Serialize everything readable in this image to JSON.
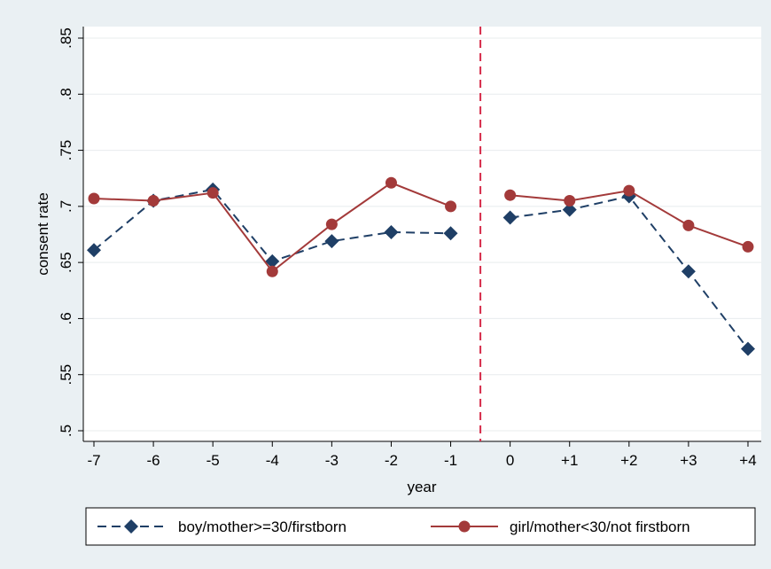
{
  "chart_data": {
    "type": "line",
    "xlabel": "year",
    "ylabel": "consent rate",
    "categories": [
      "-7",
      "-6",
      "-5",
      "-4",
      "-3",
      "-2",
      "-1",
      "0",
      "+1",
      "+2",
      "+3",
      "+4"
    ],
    "yticks": [
      ".5",
      ".55",
      ".6",
      ".65",
      ".7",
      ".75",
      ".8",
      ".85"
    ],
    "ylim": [
      0.5,
      0.85
    ],
    "grid": true,
    "legend_position": "bottom",
    "reference_line": {
      "x_between": [
        "-1",
        "0"
      ],
      "style": "dashed",
      "color": "#d62b4a"
    },
    "series": [
      {
        "name": "boy/mother>=30/firstborn",
        "color": "#1f3f66",
        "line_style": "dashed",
        "marker": "diamond",
        "values": [
          0.661,
          0.705,
          0.715,
          0.651,
          0.669,
          0.677,
          0.676,
          0.69,
          0.697,
          0.709,
          0.642,
          0.573
        ]
      },
      {
        "name": "girl/mother<30/not firstborn",
        "color": "#a33a3a",
        "line_style": "solid",
        "marker": "circle",
        "values": [
          0.707,
          0.705,
          0.712,
          0.642,
          0.684,
          0.721,
          0.7,
          0.71,
          0.705,
          0.714,
          0.683,
          0.664
        ]
      }
    ]
  }
}
